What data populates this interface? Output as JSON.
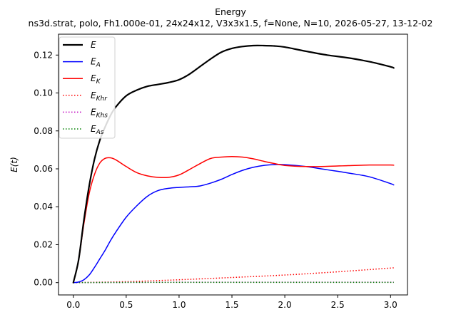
{
  "chart_data": {
    "type": "line",
    "title": "Energy",
    "subtitle": "ns3d.strat, polo, Fh1.000e-01, 24x24x12, V3x3x1.5, f=None, N=10, 2026-05-27, 13-12-02",
    "xlabel": "",
    "ylabel": "E(t)",
    "xlim": [
      -0.14,
      3.16
    ],
    "ylim": [
      -0.0065,
      0.131
    ],
    "xticks": [
      "0.0",
      "0.5",
      "1.0",
      "1.5",
      "2.0",
      "2.5",
      "3.0"
    ],
    "yticks": [
      "0.00",
      "0.02",
      "0.04",
      "0.06",
      "0.08",
      "0.10",
      "0.12"
    ],
    "grid": false,
    "legend_position": "top-left",
    "series": [
      {
        "name": "E",
        "label_main": "E",
        "label_sub": "",
        "color": "#000000",
        "style": "solid",
        "width": 2.2,
        "x": [
          0,
          0.05,
          0.1,
          0.15,
          0.2,
          0.25,
          0.3,
          0.35,
          0.4,
          0.5,
          0.6,
          0.7,
          0.8,
          0.9,
          1.0,
          1.1,
          1.2,
          1.3,
          1.4,
          1.5,
          1.6,
          1.7,
          1.8,
          1.9,
          2.0,
          2.2,
          2.4,
          2.6,
          2.8,
          3.0,
          3.03
        ],
        "y": [
          0,
          0.012,
          0.033,
          0.051,
          0.065,
          0.075,
          0.082,
          0.088,
          0.0925,
          0.0985,
          0.1015,
          0.1035,
          0.1045,
          0.1055,
          0.107,
          0.11,
          0.114,
          0.118,
          0.1215,
          0.1235,
          0.1245,
          0.125,
          0.125,
          0.1248,
          0.1242,
          0.122,
          0.12,
          0.1185,
          0.1165,
          0.1138,
          0.1132
        ]
      },
      {
        "name": "E_A",
        "label_main": "E",
        "label_sub": "A",
        "color": "#0000ff",
        "style": "solid",
        "width": 1.5,
        "x": [
          0,
          0.05,
          0.1,
          0.15,
          0.2,
          0.25,
          0.3,
          0.35,
          0.4,
          0.5,
          0.6,
          0.7,
          0.8,
          0.9,
          1.0,
          1.1,
          1.2,
          1.3,
          1.4,
          1.5,
          1.6,
          1.7,
          1.8,
          1.9,
          2.0,
          2.2,
          2.4,
          2.6,
          2.8,
          3.0,
          3.03
        ],
        "y": [
          0,
          0.0003,
          0.0015,
          0.004,
          0.008,
          0.0125,
          0.017,
          0.022,
          0.0265,
          0.0345,
          0.0405,
          0.0455,
          0.0485,
          0.0497,
          0.0502,
          0.0505,
          0.051,
          0.0525,
          0.0545,
          0.057,
          0.0592,
          0.0608,
          0.0618,
          0.0622,
          0.0622,
          0.0612,
          0.0595,
          0.0578,
          0.0558,
          0.0522,
          0.0515
        ]
      },
      {
        "name": "E_K",
        "label_main": "E",
        "label_sub": "K",
        "color": "#ff0000",
        "style": "solid",
        "width": 1.5,
        "x": [
          0,
          0.05,
          0.1,
          0.15,
          0.2,
          0.25,
          0.3,
          0.35,
          0.4,
          0.5,
          0.6,
          0.7,
          0.8,
          0.9,
          1.0,
          1.1,
          1.2,
          1.3,
          1.4,
          1.5,
          1.6,
          1.7,
          1.8,
          1.9,
          2.0,
          2.2,
          2.4,
          2.6,
          2.8,
          3.0,
          3.03
        ],
        "y": [
          0,
          0.0118,
          0.031,
          0.047,
          0.057,
          0.063,
          0.0655,
          0.0658,
          0.0648,
          0.0612,
          0.058,
          0.0563,
          0.0555,
          0.0555,
          0.0568,
          0.0597,
          0.0628,
          0.0655,
          0.0662,
          0.0665,
          0.0662,
          0.0653,
          0.064,
          0.0628,
          0.0618,
          0.0612,
          0.0613,
          0.0617,
          0.062,
          0.062,
          0.0619
        ]
      },
      {
        "name": "E_Khr",
        "label_main": "E",
        "label_sub": "Khr",
        "color": "#ff0000",
        "style": "dotted",
        "width": 1.5,
        "x": [
          0,
          0.5,
          1.0,
          1.5,
          2.0,
          2.5,
          3.03
        ],
        "y": [
          0,
          0.0005,
          0.0015,
          0.0027,
          0.004,
          0.0057,
          0.0078
        ]
      },
      {
        "name": "E_Khs",
        "label_main": "E",
        "label_sub": "Khs",
        "color": "#bf00bf",
        "style": "dotted",
        "width": 1.5,
        "x": [
          0,
          0.5,
          1.0,
          1.5,
          2.0,
          2.5,
          3.03
        ],
        "y": [
          0,
          0.0001,
          0.0002,
          0.0002,
          0.0002,
          0.0002,
          0.0002
        ]
      },
      {
        "name": "E_As",
        "label_main": "E",
        "label_sub": "As",
        "color": "#008000",
        "style": "dotted",
        "width": 1.5,
        "x": [
          0,
          0.5,
          1.0,
          1.5,
          2.0,
          2.5,
          3.03
        ],
        "y": [
          0,
          0.0001,
          0.0001,
          0.0001,
          0.0001,
          0.0001,
          0.0001
        ]
      }
    ]
  }
}
